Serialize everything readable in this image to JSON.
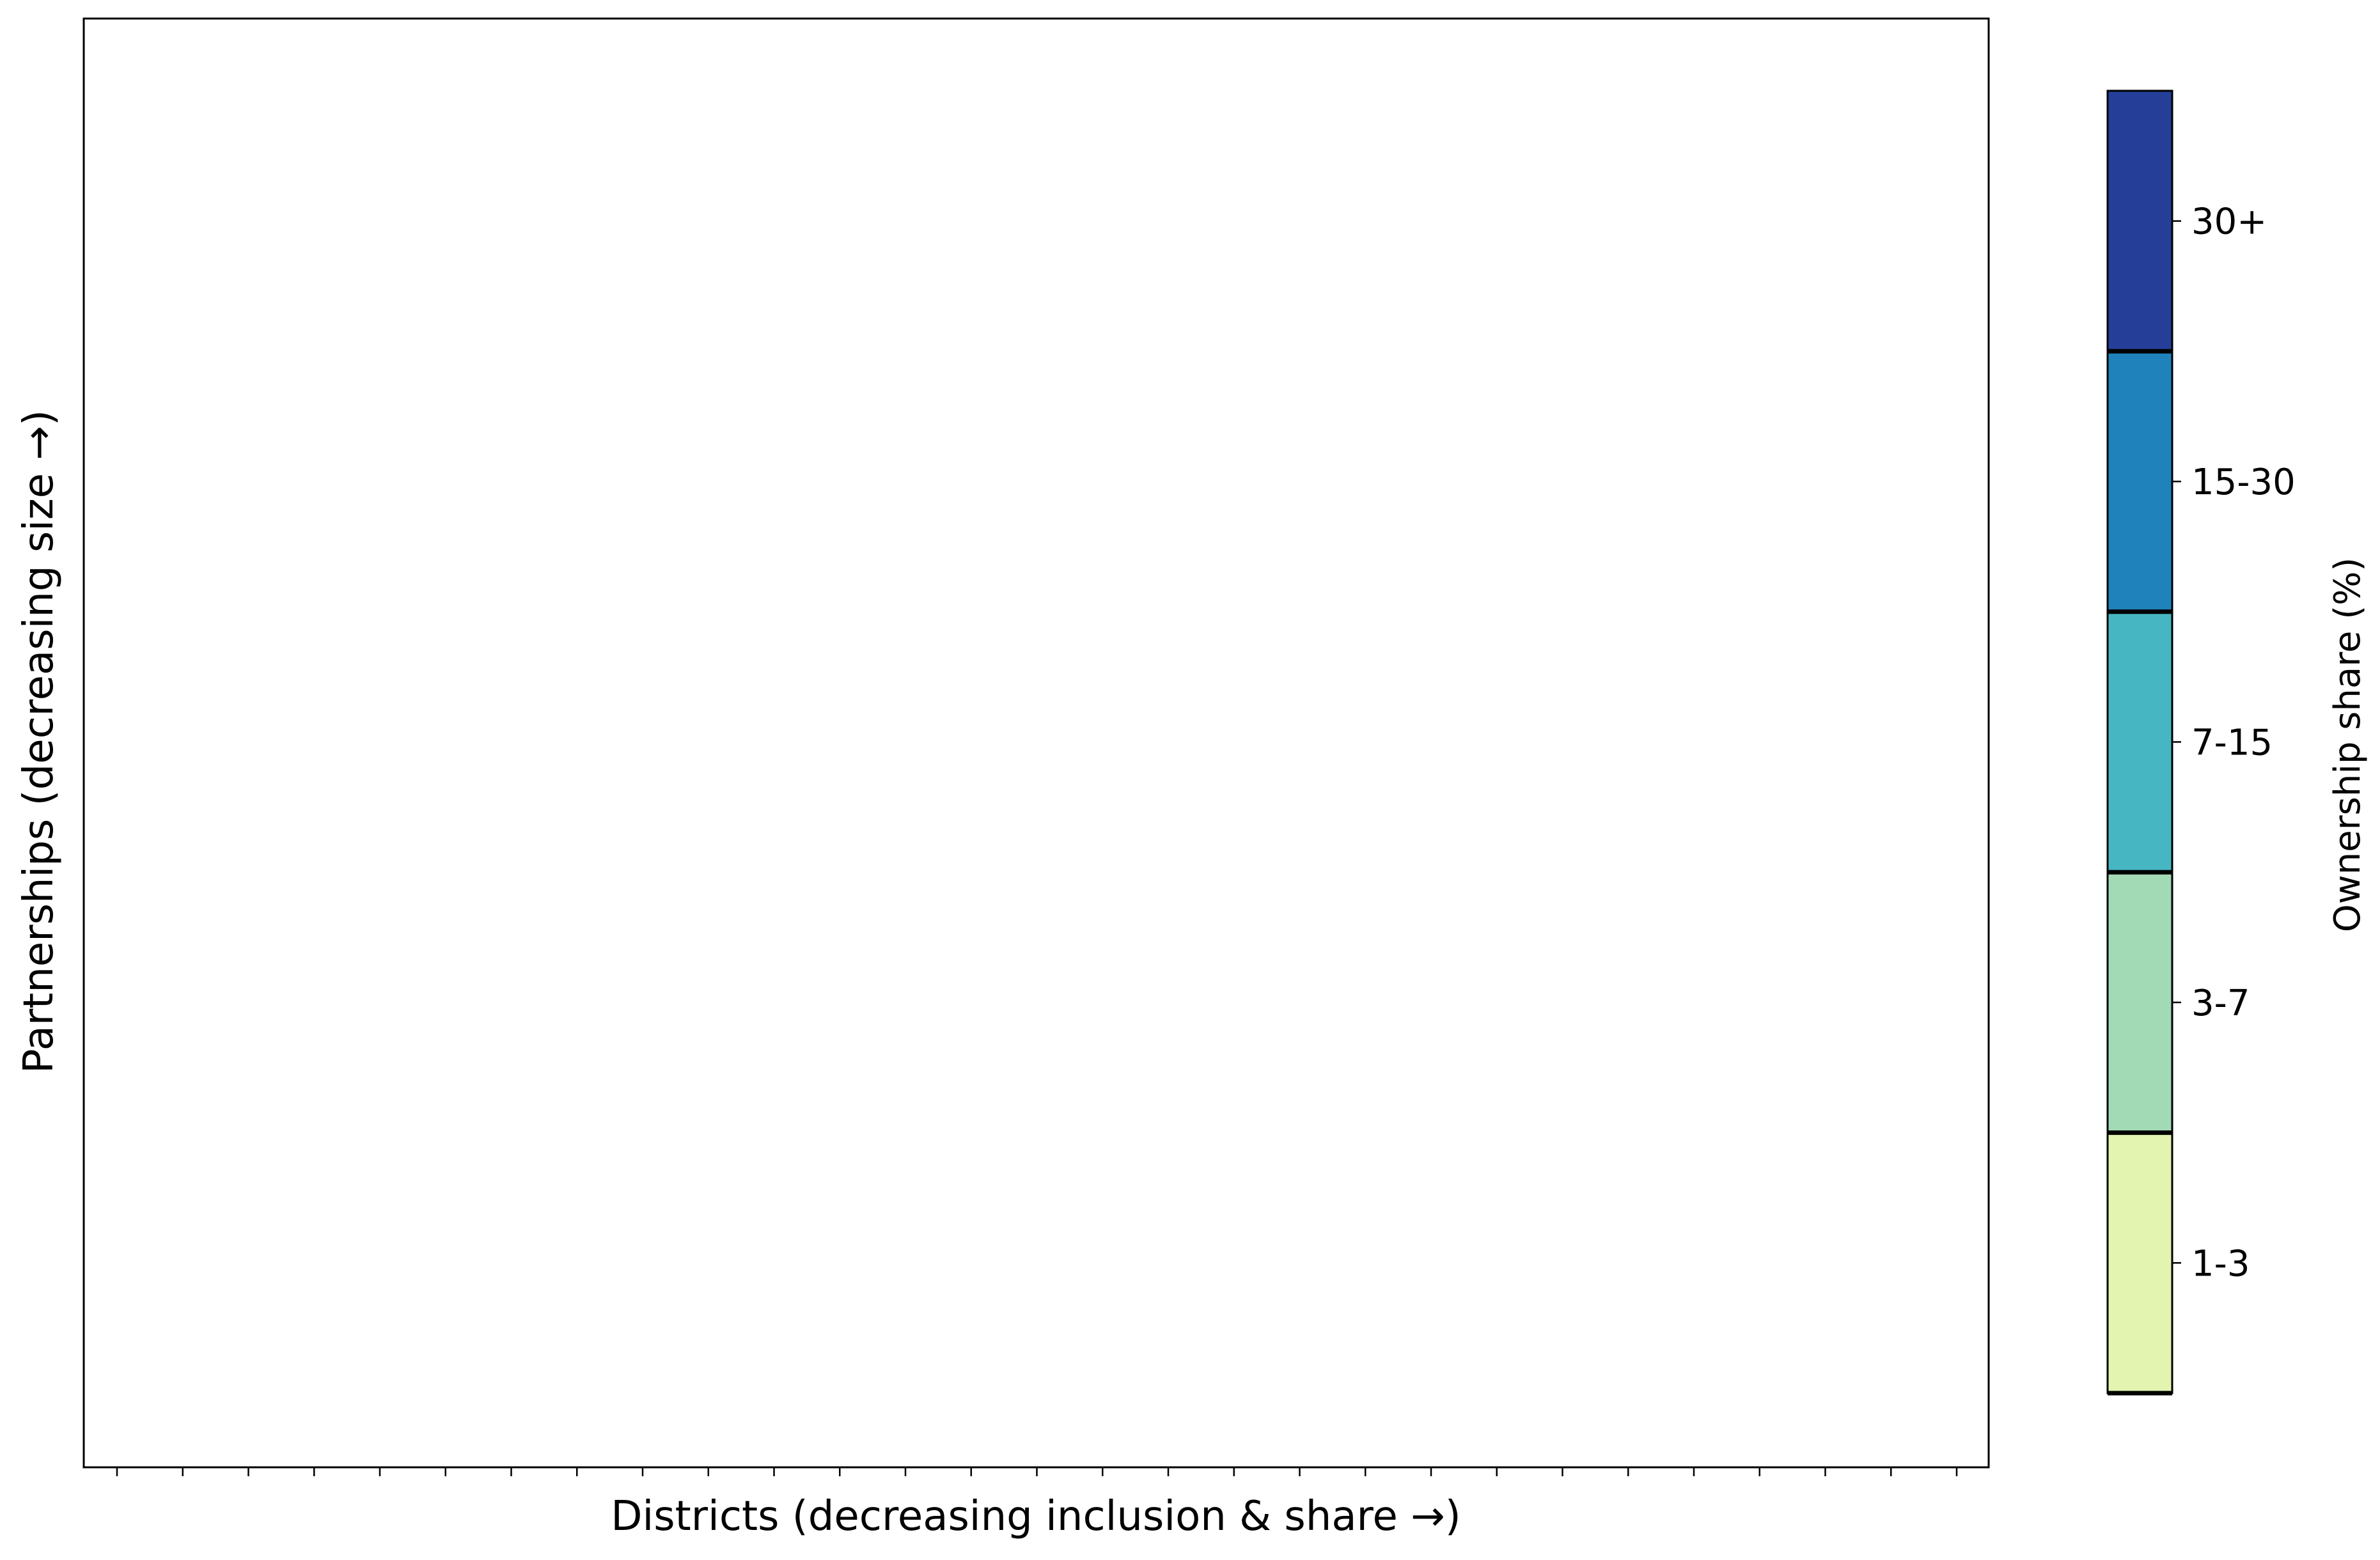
{
  "chart_data": {
    "type": "heatmap",
    "title": "",
    "xlabel": "Districts (decreasing inclusion & share →)",
    "ylabel": "Partnerships (decreasing size →)",
    "x_tick_count": 29,
    "x_tick_labels_shown": false,
    "y_ticks_shown": false,
    "grid": false,
    "cells": [],
    "colorbar": {
      "label": "Ownership share (%)",
      "placement": "right",
      "bins": [
        {
          "label": "1-3",
          "color": "#e3f4b1"
        },
        {
          "label": "3-7",
          "color": "#a1dab4"
        },
        {
          "label": "7-15",
          "color": "#47b6c3"
        },
        {
          "label": "15-30",
          "color": "#1f82ba"
        },
        {
          "label": "30+",
          "color": "#253f99"
        }
      ]
    }
  }
}
